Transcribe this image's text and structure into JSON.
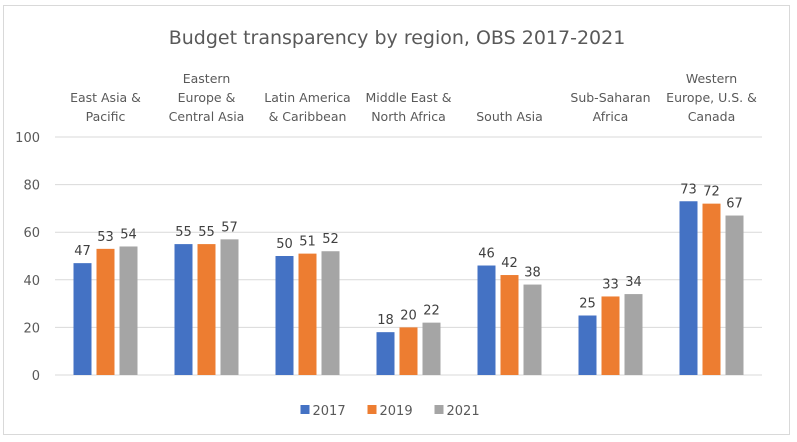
{
  "chart_data": {
    "type": "bar",
    "title": "Budget transparency by region, OBS 2017-2021",
    "xlabel": "",
    "ylabel": "",
    "ylim": [
      0,
      100
    ],
    "yticks": [
      0,
      20,
      40,
      60,
      80,
      100
    ],
    "grid": true,
    "category_label_position": "top",
    "legend_position": "bottom",
    "categories": [
      [
        "East Asia &",
        "Pacific"
      ],
      [
        "Eastern",
        "Europe &",
        "Central Asia"
      ],
      [
        "Latin America",
        "& Caribbean"
      ],
      [
        "Middle East &",
        "North Africa"
      ],
      [
        "South Asia"
      ],
      [
        "Sub-Saharan",
        "Africa"
      ],
      [
        "Western",
        "Europe, U.S. &",
        "Canada"
      ]
    ],
    "series": [
      {
        "name": "2017",
        "color": "#4472c4",
        "values": [
          47,
          55,
          50,
          18,
          46,
          25,
          73
        ]
      },
      {
        "name": "2019",
        "color": "#ed7d31",
        "values": [
          53,
          55,
          51,
          20,
          42,
          33,
          72
        ]
      },
      {
        "name": "2021",
        "color": "#a5a5a5",
        "values": [
          54,
          57,
          52,
          22,
          38,
          34,
          67
        ]
      }
    ]
  }
}
